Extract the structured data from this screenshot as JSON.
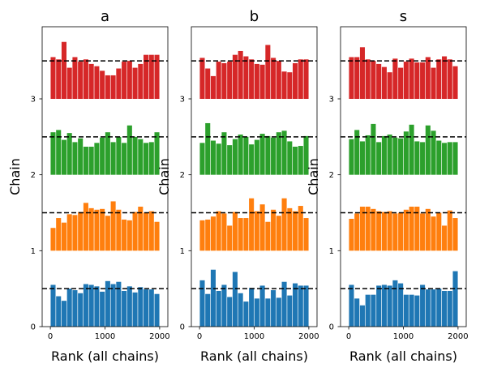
{
  "chart_data": [
    {
      "type": "bar",
      "title": "a",
      "xlabel": "Rank (all chains)",
      "ylabel": "Chain",
      "xlim": [
        -150,
        2150
      ],
      "ylim": [
        0,
        3.95
      ],
      "xticks": [
        "0",
        "1000",
        "2000"
      ],
      "yticks": [
        "0",
        "1",
        "2",
        "3"
      ],
      "bin_width": 100,
      "reference_lines": [
        0.5,
        1.5,
        2.5,
        3.5
      ],
      "series": [
        {
          "chain": 0,
          "color": "#1f77b4",
          "values": [
            0.55,
            0.4,
            0.34,
            0.5,
            0.48,
            0.44,
            0.56,
            0.55,
            0.53,
            0.46,
            0.6,
            0.56,
            0.59,
            0.47,
            0.53,
            0.45,
            0.52,
            0.49,
            0.49,
            0.43
          ]
        },
        {
          "chain": 1,
          "color": "#ff7f0e",
          "values": [
            1.3,
            1.43,
            1.37,
            1.48,
            1.47,
            1.51,
            1.63,
            1.56,
            1.54,
            1.55,
            1.46,
            1.65,
            1.54,
            1.41,
            1.4,
            1.51,
            1.58,
            1.5,
            1.52,
            1.38
          ]
        },
        {
          "chain": 2,
          "color": "#2ca02c",
          "values": [
            2.56,
            2.59,
            2.46,
            2.55,
            2.43,
            2.48,
            2.37,
            2.37,
            2.42,
            2.49,
            2.56,
            2.43,
            2.5,
            2.42,
            2.65,
            2.5,
            2.47,
            2.42,
            2.43,
            2.56
          ]
        },
        {
          "chain": 3,
          "color": "#d62728",
          "values": [
            3.55,
            3.52,
            3.75,
            3.41,
            3.55,
            3.49,
            3.52,
            3.46,
            3.43,
            3.37,
            3.31,
            3.31,
            3.4,
            3.49,
            3.5,
            3.41,
            3.46,
            3.58,
            3.58,
            3.58
          ]
        }
      ]
    },
    {
      "type": "bar",
      "title": "b",
      "xlabel": "Rank (all chains)",
      "ylabel": "Chain",
      "xlim": [
        -150,
        2150
      ],
      "ylim": [
        0,
        3.95
      ],
      "xticks": [
        "0",
        "1000",
        "2000"
      ],
      "yticks": [
        "0",
        "1",
        "2",
        "3"
      ],
      "bin_width": 100,
      "reference_lines": [
        0.5,
        1.5,
        2.5,
        3.5
      ],
      "series": [
        {
          "chain": 0,
          "color": "#1f77b4",
          "values": [
            0.61,
            0.43,
            0.75,
            0.47,
            0.55,
            0.39,
            0.72,
            0.44,
            0.33,
            0.51,
            0.37,
            0.54,
            0.37,
            0.48,
            0.38,
            0.59,
            0.41,
            0.57,
            0.54,
            0.54
          ]
        },
        {
          "chain": 1,
          "color": "#ff7f0e",
          "values": [
            1.4,
            1.41,
            1.45,
            1.52,
            1.49,
            1.33,
            1.51,
            1.43,
            1.43,
            1.69,
            1.52,
            1.61,
            1.38,
            1.54,
            1.46,
            1.69,
            1.56,
            1.52,
            1.59,
            1.43
          ]
        },
        {
          "chain": 2,
          "color": "#2ca02c",
          "values": [
            2.42,
            2.68,
            2.45,
            2.41,
            2.56,
            2.39,
            2.47,
            2.53,
            2.5,
            2.4,
            2.46,
            2.54,
            2.51,
            2.49,
            2.56,
            2.58,
            2.44,
            2.37,
            2.38,
            2.51
          ]
        },
        {
          "chain": 3,
          "color": "#d62728",
          "values": [
            3.54,
            3.4,
            3.3,
            3.49,
            3.47,
            3.49,
            3.58,
            3.63,
            3.56,
            3.52,
            3.46,
            3.45,
            3.71,
            3.54,
            3.5,
            3.36,
            3.35,
            3.47,
            3.52,
            3.52
          ]
        }
      ]
    },
    {
      "type": "bar",
      "title": "s",
      "xlabel": "Rank (all chains)",
      "ylabel": "Chain",
      "xlim": [
        -150,
        2150
      ],
      "ylim": [
        0,
        3.95
      ],
      "xticks": [
        "0",
        "1000",
        "2000"
      ],
      "yticks": [
        "0",
        "1",
        "2",
        "3"
      ],
      "bin_width": 100,
      "reference_lines": [
        0.5,
        1.5,
        2.5,
        3.5
      ],
      "series": [
        {
          "chain": 0,
          "color": "#1f77b4",
          "values": [
            0.55,
            0.37,
            0.28,
            0.42,
            0.42,
            0.54,
            0.55,
            0.54,
            0.61,
            0.57,
            0.42,
            0.42,
            0.41,
            0.55,
            0.49,
            0.49,
            0.5,
            0.47,
            0.47,
            0.73
          ]
        },
        {
          "chain": 1,
          "color": "#ff7f0e",
          "values": [
            1.42,
            1.49,
            1.58,
            1.58,
            1.55,
            1.52,
            1.51,
            1.52,
            1.49,
            1.5,
            1.54,
            1.58,
            1.58,
            1.49,
            1.55,
            1.45,
            1.5,
            1.33,
            1.53,
            1.43
          ]
        },
        {
          "chain": 2,
          "color": "#2ca02c",
          "values": [
            2.47,
            2.59,
            2.44,
            2.52,
            2.67,
            2.43,
            2.51,
            2.53,
            2.49,
            2.48,
            2.57,
            2.66,
            2.44,
            2.43,
            2.65,
            2.58,
            2.45,
            2.42,
            2.43,
            2.43
          ]
        },
        {
          "chain": 3,
          "color": "#d62728",
          "values": [
            3.55,
            3.55,
            3.68,
            3.52,
            3.5,
            3.46,
            3.42,
            3.35,
            3.53,
            3.41,
            3.49,
            3.53,
            3.48,
            3.48,
            3.55,
            3.41,
            3.52,
            3.56,
            3.52,
            3.43
          ]
        }
      ]
    }
  ]
}
